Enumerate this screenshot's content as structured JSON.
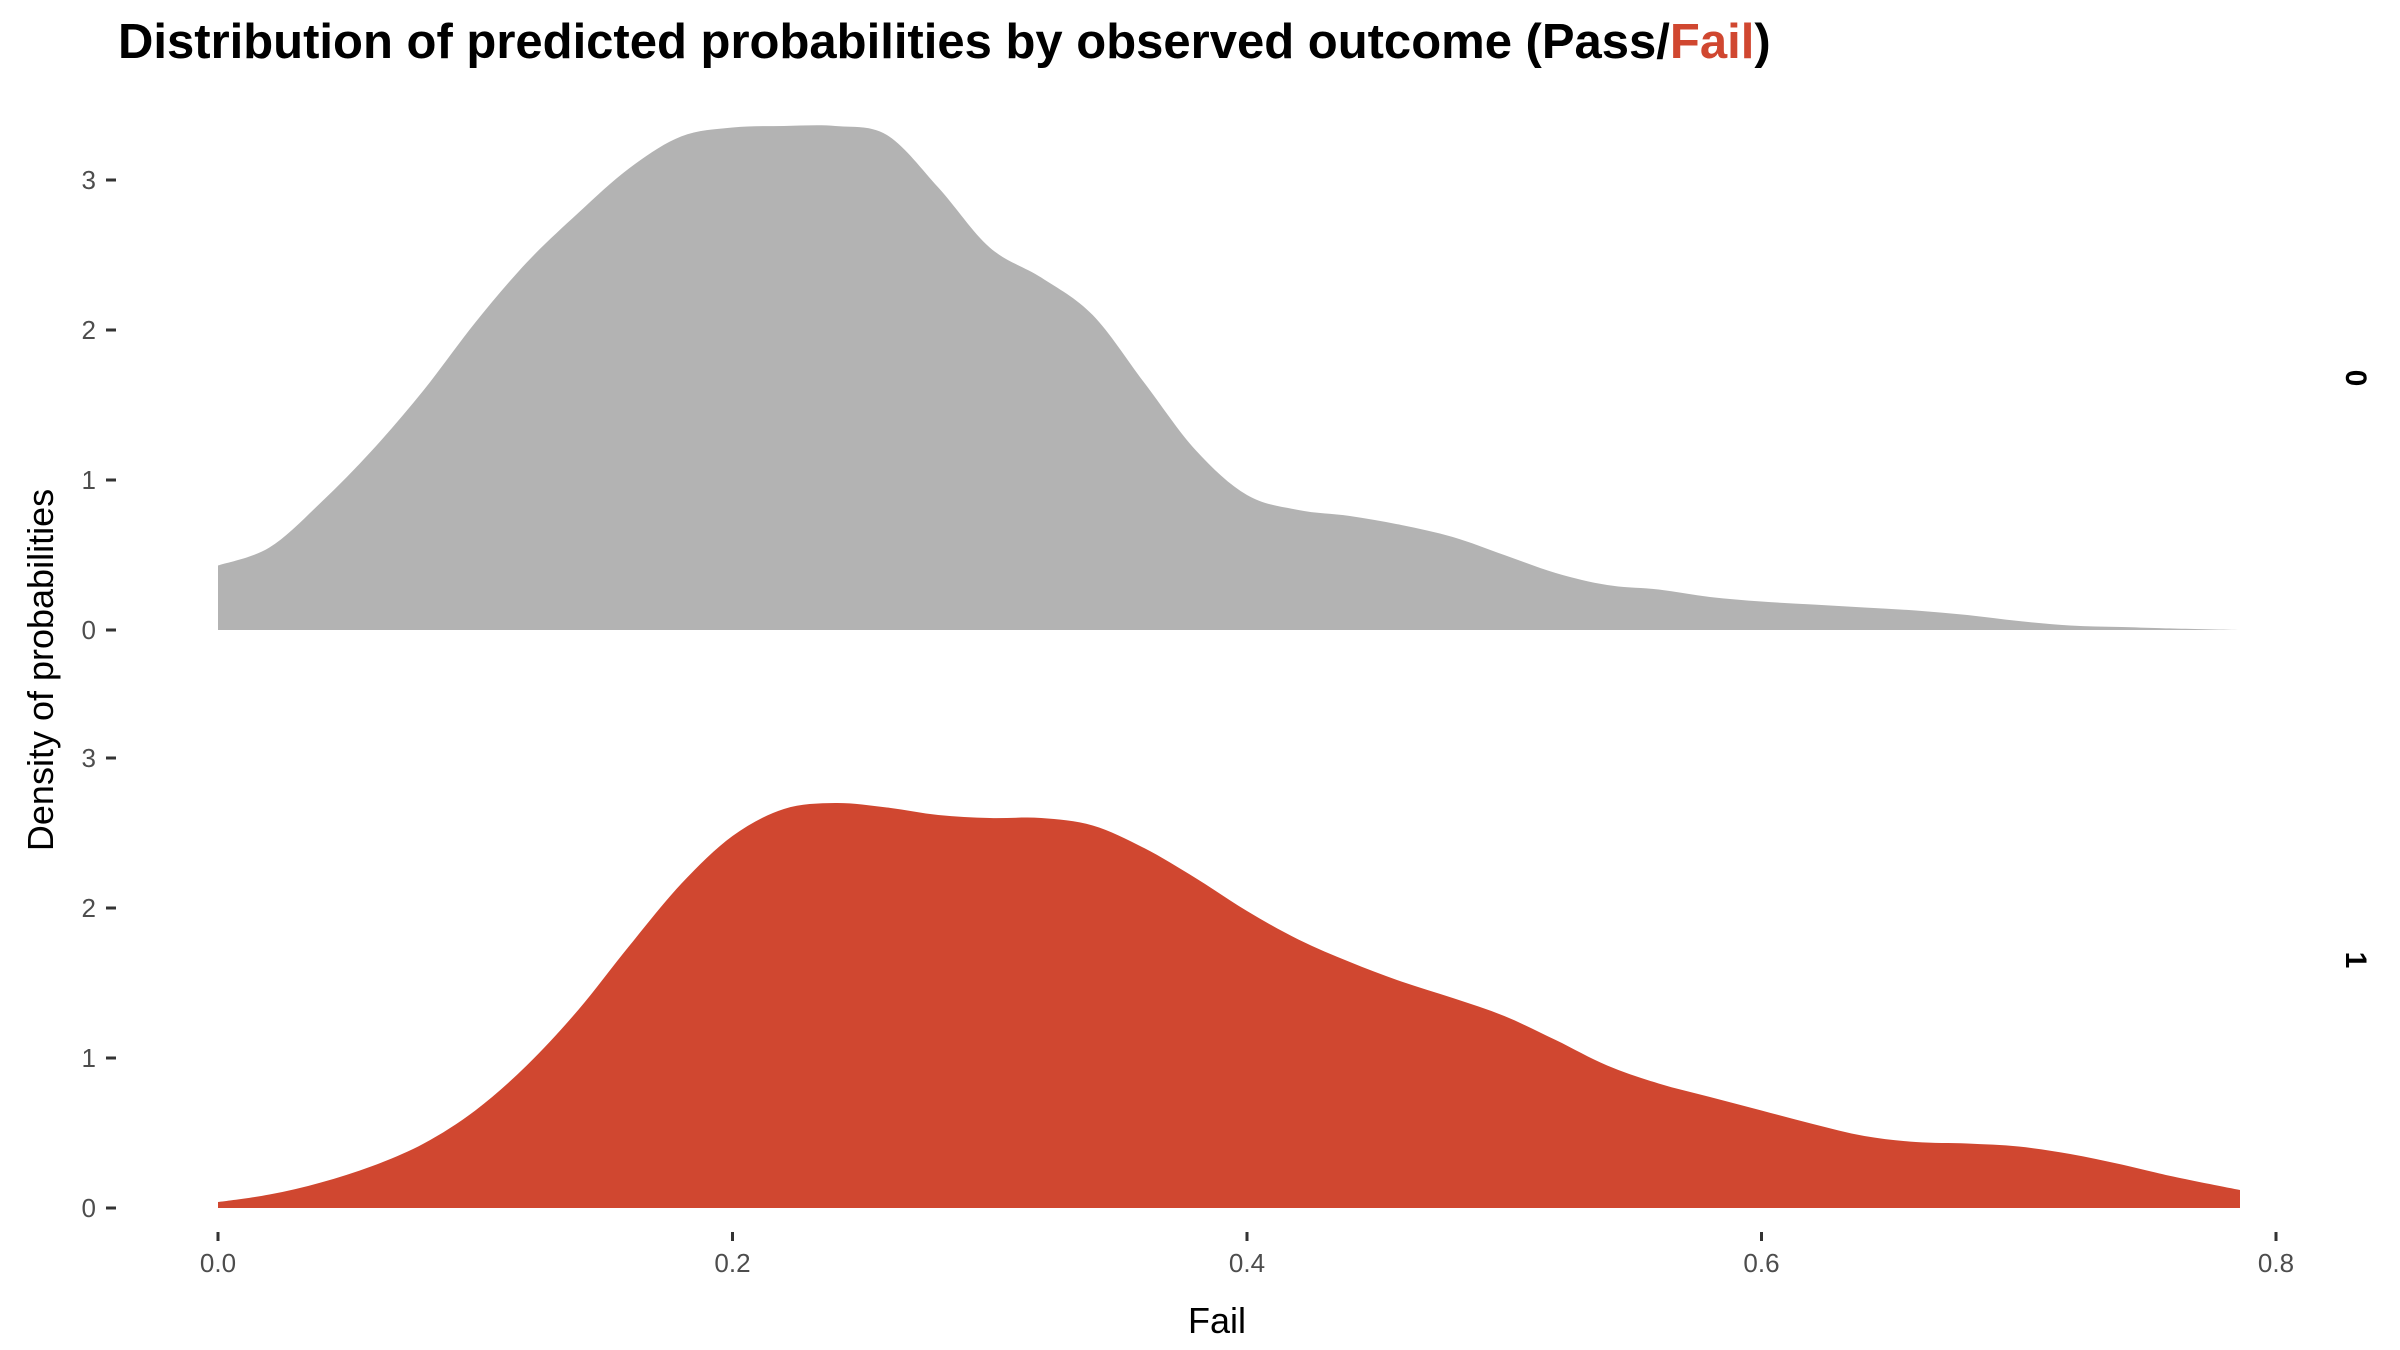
{
  "title": {
    "prefix": "Distribution of predicted probabilities by observed outcome (Pass/",
    "highlight": "Fail",
    "suffix": ")"
  },
  "colors": {
    "highlight": "#d04730",
    "panel_0": "#b3b3b3",
    "panel_1": "#d04730",
    "tick": "#333333",
    "tick_label": "#4d4d4d"
  },
  "chart_data": {
    "type": "area",
    "title": "Distribution of predicted probabilities by observed outcome (Pass/Fail)",
    "xlabel": "Fail",
    "ylabel": "Density of probabilities",
    "xlim": [
      0,
      0.8
    ],
    "ylim": [
      0,
      3.3
    ],
    "x_ticks": [
      0.0,
      0.2,
      0.4,
      0.6,
      0.8
    ],
    "x_tick_labels": [
      "0.0",
      "0.2",
      "0.4",
      "0.6",
      "0.8"
    ],
    "y_ticks": [
      0,
      1,
      2,
      3
    ],
    "y_tick_labels": [
      "0",
      "1",
      "2",
      "3"
    ],
    "grid": false,
    "facet": "rows",
    "panels": [
      {
        "strip": "0",
        "color": "#b3b3b3",
        "x": [
          0.0,
          0.02,
          0.04,
          0.06,
          0.08,
          0.1,
          0.12,
          0.14,
          0.16,
          0.18,
          0.2,
          0.22,
          0.24,
          0.26,
          0.28,
          0.3,
          0.32,
          0.34,
          0.36,
          0.38,
          0.4,
          0.42,
          0.44,
          0.46,
          0.48,
          0.5,
          0.52,
          0.54,
          0.56,
          0.58,
          0.6,
          0.62,
          0.64,
          0.66,
          0.68,
          0.7,
          0.72,
          0.74,
          0.76,
          0.786
        ],
        "y": [
          0.43,
          0.55,
          0.85,
          1.2,
          1.6,
          2.05,
          2.45,
          2.78,
          3.08,
          3.29,
          3.35,
          3.36,
          3.36,
          3.3,
          2.95,
          2.55,
          2.35,
          2.1,
          1.65,
          1.2,
          0.9,
          0.8,
          0.76,
          0.7,
          0.62,
          0.5,
          0.38,
          0.3,
          0.27,
          0.22,
          0.19,
          0.17,
          0.15,
          0.13,
          0.1,
          0.06,
          0.03,
          0.02,
          0.01,
          0.0
        ]
      },
      {
        "strip": "1",
        "color": "#d04730",
        "x": [
          0.0,
          0.02,
          0.04,
          0.06,
          0.08,
          0.1,
          0.12,
          0.14,
          0.16,
          0.18,
          0.2,
          0.22,
          0.24,
          0.26,
          0.28,
          0.3,
          0.32,
          0.34,
          0.36,
          0.38,
          0.4,
          0.42,
          0.44,
          0.46,
          0.48,
          0.5,
          0.52,
          0.54,
          0.56,
          0.58,
          0.6,
          0.62,
          0.64,
          0.66,
          0.68,
          0.7,
          0.72,
          0.74,
          0.76,
          0.786
        ],
        "y": [
          0.04,
          0.09,
          0.17,
          0.28,
          0.43,
          0.65,
          0.95,
          1.32,
          1.75,
          2.16,
          2.48,
          2.66,
          2.7,
          2.67,
          2.62,
          2.6,
          2.6,
          2.55,
          2.4,
          2.2,
          1.98,
          1.79,
          1.64,
          1.51,
          1.4,
          1.28,
          1.12,
          0.95,
          0.83,
          0.74,
          0.65,
          0.56,
          0.48,
          0.44,
          0.43,
          0.41,
          0.36,
          0.29,
          0.21,
          0.12
        ]
      }
    ]
  }
}
